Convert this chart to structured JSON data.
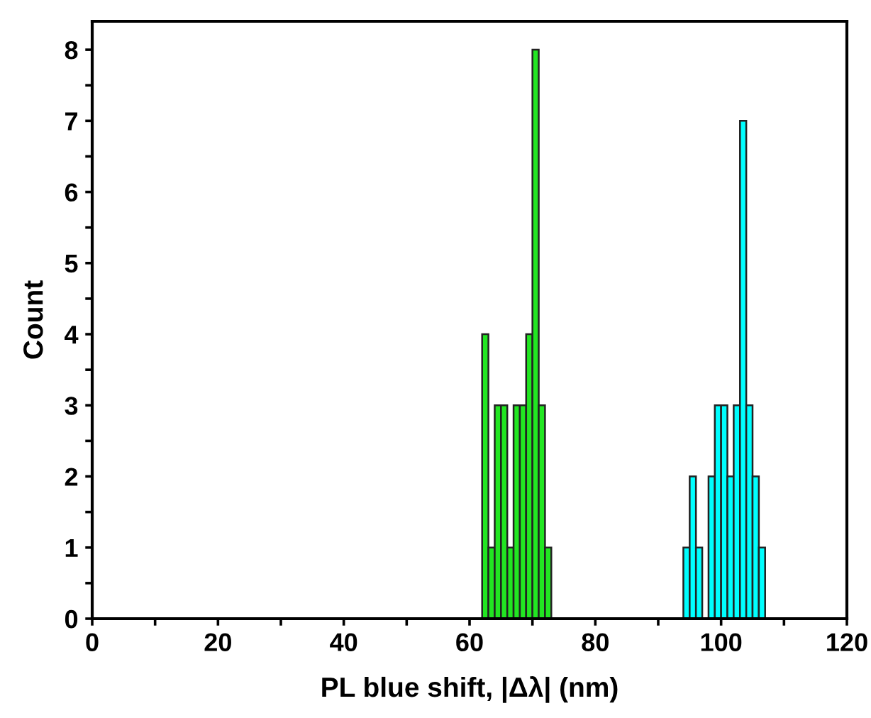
{
  "chart_data": {
    "type": "histogram",
    "xlabel": "PL blue shift, |Δλ| (nm)",
    "ylabel": "Count",
    "bins": [
      62,
      63,
      64,
      65,
      66,
      67,
      68,
      69,
      70,
      71,
      72,
      73,
      74,
      75,
      76,
      77,
      78,
      79,
      80,
      81,
      82,
      83,
      84,
      85,
      86,
      87,
      88,
      89,
      90,
      91,
      92,
      93,
      94,
      95,
      96,
      97,
      98,
      99,
      100,
      101,
      102,
      103,
      104,
      105,
      106,
      107
    ],
    "series": [
      {
        "color": "#22e622",
        "values": [
          4,
          1,
          3,
          3,
          1,
          3,
          3,
          4,
          8,
          3,
          1,
          null,
          null,
          null,
          null,
          null,
          null,
          null,
          null,
          null,
          null,
          null,
          null,
          null,
          null,
          null,
          null,
          null,
          null,
          null,
          null,
          null,
          null,
          null,
          null,
          null,
          null,
          null,
          null,
          null,
          null,
          null,
          null,
          null,
          null
        ]
      },
      {
        "color": "#00ffff",
        "values": [
          null,
          null,
          null,
          null,
          null,
          null,
          null,
          null,
          null,
          null,
          null,
          null,
          null,
          null,
          null,
          null,
          null,
          null,
          null,
          null,
          null,
          null,
          null,
          null,
          null,
          null,
          null,
          null,
          null,
          null,
          null,
          null,
          1,
          2,
          1,
          0,
          2,
          3,
          3,
          2,
          3,
          7,
          3,
          2,
          1
        ]
      }
    ],
    "xlim": [
      0,
      120
    ],
    "ylim": [
      0,
      8.4
    ],
    "xticks": [
      0,
      {
        "value": 10,
        "label": null
      },
      20,
      {
        "value": 30,
        "label": null
      },
      40,
      {
        "value": 50,
        "label": null
      },
      60,
      {
        "value": 70,
        "label": null
      },
      80,
      {
        "value": 90,
        "label": null
      },
      100,
      {
        "value": 110,
        "label": null
      },
      120
    ],
    "yticks": [
      0,
      {
        "value": 0.5,
        "label": null
      },
      1,
      {
        "value": 1.5,
        "label": null
      },
      2,
      {
        "value": 2.5,
        "label": null
      },
      3,
      {
        "value": 3.5,
        "label": null
      },
      4,
      {
        "value": 4.5,
        "label": null
      },
      5,
      {
        "value": 5.5,
        "label": null
      },
      6,
      {
        "value": 6.5,
        "label": null
      },
      7,
      {
        "value": 7.5,
        "label": null
      },
      8
    ],
    "grid": false,
    "legend": false
  }
}
